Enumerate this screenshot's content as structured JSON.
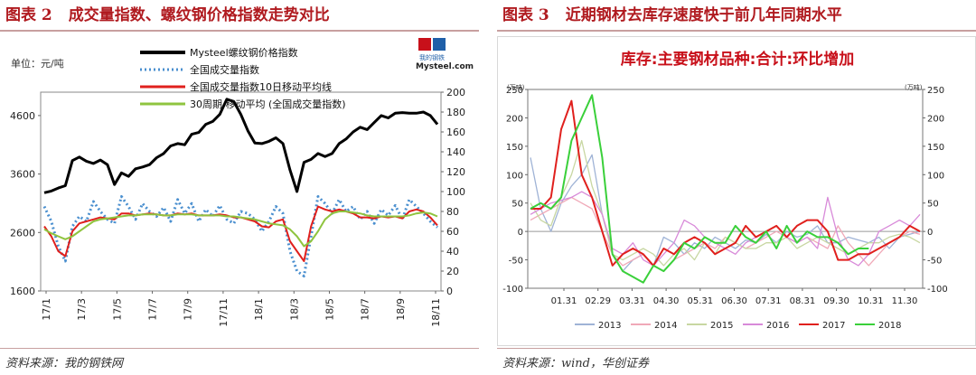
{
  "left": {
    "fig_no": "图表 2",
    "title": "成交量指数、螺纹钢价格指数走势对比",
    "source": "资料来源：我的钢铁网",
    "unit": "单位：元/吨",
    "logo": {
      "cn": "我的钢铁",
      "en": "Mysteel.com"
    },
    "chart_data": {
      "type": "line",
      "x_ticks": [
        "17/1",
        "17/3",
        "17/5",
        "17/7",
        "17/9",
        "17/11",
        "18/1",
        "18/3",
        "18/5",
        "18/7",
        "18/9",
        "18/11"
      ],
      "y_left": {
        "ticks": [
          1600,
          2600,
          3600,
          4600
        ],
        "range": [
          1600,
          5000
        ]
      },
      "y_right": {
        "ticks": [
          0,
          20,
          40,
          60,
          80,
          100,
          120,
          140,
          160,
          180,
          200
        ],
        "range": [
          0,
          200
        ]
      },
      "series": [
        {
          "name": "Mysteel螺纹钢价格指数",
          "axis": "left",
          "color": "#000000",
          "style": "solid-thick",
          "values": [
            3280,
            3310,
            3360,
            3400,
            3830,
            3890,
            3820,
            3780,
            3840,
            3760,
            3420,
            3620,
            3560,
            3690,
            3720,
            3760,
            3880,
            3950,
            4080,
            4120,
            4100,
            4280,
            4310,
            4450,
            4500,
            4620,
            4880,
            4840,
            4620,
            4340,
            4130,
            4120,
            4160,
            4220,
            4120,
            3670,
            3300,
            3800,
            3850,
            3950,
            3900,
            3950,
            4120,
            4200,
            4320,
            4400,
            4360,
            4480,
            4600,
            4560,
            4640,
            4650,
            4640,
            4640,
            4660,
            4600,
            4450
          ]
        },
        {
          "name": "全国成交量指数",
          "axis": "right",
          "color": "#4a8fcf",
          "style": "dotted",
          "values": [
            85,
            70,
            45,
            30,
            65,
            75,
            70,
            90,
            80,
            72,
            68,
            95,
            85,
            72,
            88,
            80,
            75,
            84,
            70,
            92,
            78,
            88,
            70,
            82,
            75,
            86,
            72,
            68,
            80,
            78,
            72,
            60,
            70,
            85,
            78,
            40,
            20,
            15,
            55,
            95,
            88,
            78,
            92,
            80,
            85,
            72,
            80,
            68,
            82,
            76,
            86,
            72,
            92,
            85,
            78,
            70,
            64
          ]
        },
        {
          "name": "全国成交量指数10日移动平均线",
          "axis": "right",
          "color": "#e0201d",
          "style": "solid",
          "values": [
            65,
            55,
            40,
            35,
            60,
            68,
            70,
            72,
            74,
            73,
            72,
            78,
            78,
            76,
            77,
            78,
            77,
            76,
            76,
            78,
            77,
            78,
            76,
            76,
            76,
            77,
            76,
            74,
            74,
            72,
            70,
            65,
            64,
            70,
            72,
            50,
            40,
            30,
            65,
            85,
            82,
            80,
            82,
            80,
            78,
            74,
            74,
            73,
            75,
            74,
            75,
            73,
            80,
            82,
            80,
            74,
            66
          ]
        },
        {
          "name": "30周期 移动平均 (全国成交量指数)",
          "axis": "right",
          "color": "#8fc43f",
          "style": "solid",
          "values": [
            62,
            58,
            55,
            52,
            55,
            60,
            65,
            70,
            72,
            73,
            74,
            75,
            76,
            76,
            77,
            77,
            77,
            76,
            76,
            77,
            77,
            77,
            76,
            76,
            76,
            76,
            75,
            75,
            74,
            73,
            72,
            70,
            68,
            67,
            66,
            62,
            55,
            45,
            50,
            60,
            72,
            78,
            80,
            80,
            79,
            78,
            76,
            75,
            75,
            75,
            75,
            75,
            76,
            78,
            79,
            78,
            75
          ]
        }
      ]
    }
  },
  "right": {
    "fig_no": "图表 3",
    "title": "近期钢材去库存速度快于前几年同期水平",
    "source": "资料来源：wind，华创证券",
    "chart_data": {
      "type": "line",
      "title": "库存:主要钢材品种:合计:环比增加",
      "unit": "(万吨)",
      "x_ticks": [
        "01.31",
        "02.29",
        "03.31",
        "04.30",
        "05.31",
        "06.30",
        "07.31",
        "08.31",
        "09.30",
        "10.31",
        "11.30"
      ],
      "ylim": [
        -100,
        250
      ],
      "y_ticks": [
        -100,
        -50,
        0,
        50,
        100,
        150,
        200,
        250
      ],
      "series": [
        {
          "name": "2013",
          "color": "#9fb3d6",
          "values": [
            130,
            40,
            0,
            50,
            80,
            100,
            135,
            30,
            -40,
            -70,
            -50,
            -40,
            -60,
            -10,
            -20,
            -40,
            -20,
            -30,
            -10,
            -20,
            -30,
            -15,
            -20,
            -5,
            -20,
            0,
            -10,
            -5,
            10,
            -20,
            -20,
            -10,
            -15,
            -20,
            -10,
            -30,
            -10,
            -5,
            0
          ]
        },
        {
          "name": "2014",
          "color": "#f0a9b8",
          "values": [
            20,
            30,
            40,
            50,
            60,
            50,
            40,
            0,
            -40,
            -60,
            -50,
            -40,
            -60,
            -70,
            -50,
            -40,
            -30,
            -20,
            -30,
            -10,
            -20,
            -30,
            -20,
            -10,
            0,
            -10,
            -20,
            -10,
            -20,
            -30,
            10,
            -20,
            -40,
            -60,
            -40,
            -20,
            -10,
            0,
            -5
          ]
        },
        {
          "name": "2015",
          "color": "#c8d7a2",
          "values": [
            50,
            20,
            10,
            60,
            100,
            160,
            80,
            30,
            -40,
            -50,
            -40,
            -30,
            -40,
            -60,
            -40,
            -30,
            -50,
            -20,
            -40,
            -10,
            -20,
            -30,
            -30,
            -20,
            -20,
            -10,
            -30,
            -20,
            -10,
            -20,
            -30,
            -40,
            -30,
            -20,
            -20,
            -10,
            -5,
            -10,
            -20
          ]
        },
        {
          "name": "2016",
          "color": "#d88ad9",
          "values": [
            30,
            40,
            50,
            55,
            60,
            70,
            60,
            30,
            -30,
            -40,
            -20,
            -50,
            -60,
            -40,
            -20,
            20,
            10,
            -10,
            -20,
            -30,
            -40,
            -20,
            -10,
            0,
            10,
            -10,
            -20,
            -10,
            -30,
            60,
            -10,
            -50,
            -60,
            -40,
            0,
            10,
            20,
            10,
            30
          ]
        },
        {
          "name": "2017",
          "color": "#e0201d",
          "values": [
            40,
            40,
            60,
            180,
            230,
            100,
            60,
            0,
            -60,
            -40,
            -30,
            -40,
            -60,
            -30,
            -40,
            -20,
            -10,
            -20,
            -40,
            -30,
            -20,
            10,
            -10,
            0,
            10,
            -10,
            10,
            20,
            20,
            0,
            -50,
            -50,
            -40,
            -40,
            -30,
            -20,
            -10,
            10,
            0
          ]
        },
        {
          "name": "2018",
          "color": "#3ad03a",
          "values": [
            40,
            50,
            40,
            60,
            160,
            200,
            240,
            130,
            -40,
            -70,
            -80,
            -90,
            -60,
            -70,
            -50,
            -20,
            -30,
            -10,
            -20,
            -20,
            10,
            -10,
            -20,
            0,
            -30,
            10,
            -20,
            0,
            -10,
            -10,
            -20,
            -40,
            -30,
            -30
          ]
        }
      ]
    }
  }
}
